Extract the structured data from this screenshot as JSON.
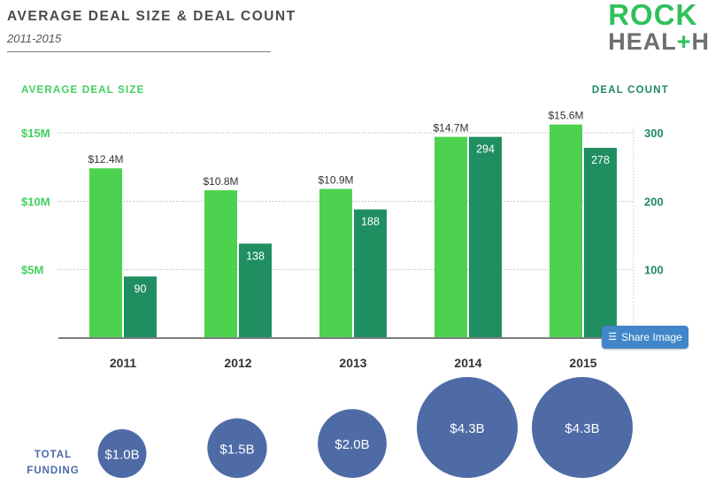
{
  "header": {
    "title": "AVERAGE DEAL SIZE & DEAL COUNT",
    "subtitle": "2011-2015"
  },
  "logo": {
    "line1": "ROCK",
    "line2_a": "HEAL",
    "line2_plus": "+",
    "line2_b": "H"
  },
  "share": {
    "label": "Share Image",
    "icon": "layers-icon"
  },
  "colors": {
    "deal_size": "#4cd24f",
    "deal_count": "#1f8f62",
    "funding": "#4e6ba6",
    "axis_left": "#3fd05f",
    "axis_right": "#1f8a5e"
  },
  "chart_data": {
    "type": "bar",
    "categories": [
      "2011",
      "2012",
      "2013",
      "2014",
      "2015"
    ],
    "left_axis": {
      "title": "AVERAGE DEAL SIZE",
      "range": [
        0,
        15
      ],
      "ticks": [
        5,
        10,
        15
      ],
      "tick_labels": [
        "$5M",
        "$10M",
        "$15M"
      ]
    },
    "right_axis": {
      "title": "DEAL COUNT",
      "range": [
        0,
        300
      ],
      "ticks": [
        100,
        200,
        300
      ],
      "tick_labels": [
        "100",
        "200",
        "300"
      ]
    },
    "grid": true,
    "series": [
      {
        "key": "deal_size",
        "axis": "left",
        "values": [
          12.4,
          10.8,
          10.9,
          14.7,
          15.6
        ],
        "labels": [
          "$12.4M",
          "$10.8M",
          "$10.9M",
          "$14.7M",
          "$15.6M"
        ]
      },
      {
        "key": "deal_count",
        "axis": "right",
        "values": [
          90,
          138,
          188,
          294,
          278
        ],
        "labels": [
          "90",
          "138",
          "188",
          "294",
          "278"
        ]
      }
    ],
    "total_funding": {
      "label_line1": "TOTAL",
      "label_line2": "FUNDING",
      "values": [
        1.0,
        1.5,
        2.0,
        4.3,
        4.3
      ],
      "labels": [
        "$1.0B",
        "$1.5B",
        "$2.0B",
        "$4.3B",
        "$4.3B"
      ]
    }
  }
}
